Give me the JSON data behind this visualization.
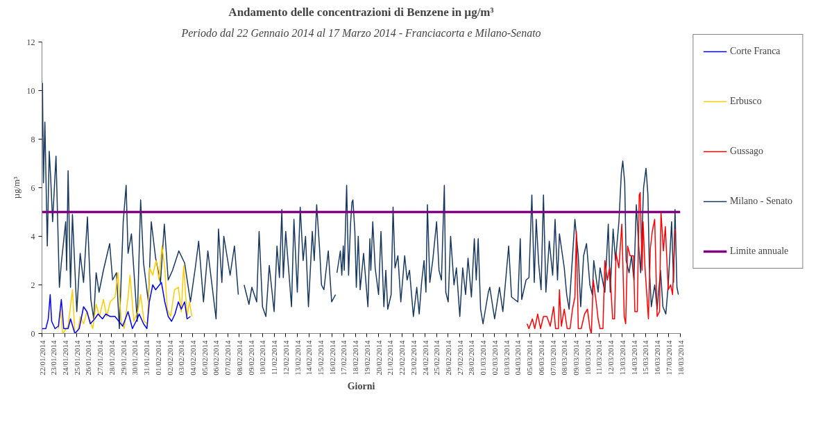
{
  "chart_data": {
    "type": "line",
    "title": "Andamento delle concentrazioni di Benzene in µg/m³",
    "subtitle": "Periodo dal 22 Gennaio 2014 al 17 Marzo 2014 - Franciacorta e Milano-Senato",
    "xlabel": "Giorni",
    "ylabel": "µg/m³",
    "legend": "right",
    "xlim": [
      "2014-01-22",
      "2014-03-18"
    ],
    "ylim": [
      0,
      12
    ],
    "yticks": [
      0,
      2,
      4,
      6,
      8,
      10,
      12
    ],
    "xticks": [
      {
        "value": "2014-01-22",
        "label": "22/01/2014"
      },
      {
        "value": "2014-01-23",
        "label": "23/01/2014"
      },
      {
        "value": "2014-01-24",
        "label": "24/01/2014"
      },
      {
        "value": "2014-01-25",
        "label": "25/01/2014"
      },
      {
        "value": "2014-01-26",
        "label": "26/01/2014"
      },
      {
        "value": "2014-01-27",
        "label": "27/01/2014"
      },
      {
        "value": "2014-01-28",
        "label": "28/01/2014"
      },
      {
        "value": "2014-01-29",
        "label": "29/01/2014"
      },
      {
        "value": "2014-01-30",
        "label": "30/01/2014"
      },
      {
        "value": "2014-01-31",
        "label": "31/01/2014"
      },
      {
        "value": "2014-02-01",
        "label": "01/02/2014"
      },
      {
        "value": "2014-02-02",
        "label": "02/02/2014"
      },
      {
        "value": "2014-02-03",
        "label": "03/02/2014"
      },
      {
        "value": "2014-02-04",
        "label": "04/02/2014"
      },
      {
        "value": "2014-02-05",
        "label": "05/02/2014"
      },
      {
        "value": "2014-02-06",
        "label": "06/02/2014"
      },
      {
        "value": "2014-02-07",
        "label": "07/02/2014"
      },
      {
        "value": "2014-02-08",
        "label": "08/02/2014"
      },
      {
        "value": "2014-02-09",
        "label": "09/02/2014"
      },
      {
        "value": "2014-02-10",
        "label": "10/02/2014"
      },
      {
        "value": "2014-02-11",
        "label": "11/02/2014"
      },
      {
        "value": "2014-02-12",
        "label": "12/02/2014"
      },
      {
        "value": "2014-02-13",
        "label": "13/02/2014"
      },
      {
        "value": "2014-02-14",
        "label": "14/02/2014"
      },
      {
        "value": "2014-02-15",
        "label": "15/02/2014"
      },
      {
        "value": "2014-02-16",
        "label": "16/02/2014"
      },
      {
        "value": "2014-02-17",
        "label": "17/02/2014"
      },
      {
        "value": "2014-02-18",
        "label": "18/02/2014"
      },
      {
        "value": "2014-02-19",
        "label": "19/02/2014"
      },
      {
        "value": "2014-02-20",
        "label": "20/02/2014"
      },
      {
        "value": "2014-02-21",
        "label": "21/02/2014"
      },
      {
        "value": "2014-02-22",
        "label": "22/02/2014"
      },
      {
        "value": "2014-02-23",
        "label": "23/02/2014"
      },
      {
        "value": "2014-02-24",
        "label": "24/02/2014"
      },
      {
        "value": "2014-02-25",
        "label": "25/02/2014"
      },
      {
        "value": "2014-02-26",
        "label": "26/02/2014"
      },
      {
        "value": "2014-02-27",
        "label": "27/02/2014"
      },
      {
        "value": "2014-02-28",
        "label": "28/02/2014"
      },
      {
        "value": "2014-03-01",
        "label": "01/03/2014"
      },
      {
        "value": "2014-03-02",
        "label": "02/03/2014"
      },
      {
        "value": "2014-03-03",
        "label": "03/03/2014"
      },
      {
        "value": "2014-03-04",
        "label": "04/03/2014"
      },
      {
        "value": "2014-03-05",
        "label": "05/03/2014"
      },
      {
        "value": "2014-03-06",
        "label": "06/03/2014"
      },
      {
        "value": "2014-03-07",
        "label": "07/03/2014"
      },
      {
        "value": "2014-03-08",
        "label": "08/03/2014"
      },
      {
        "value": "2014-03-09",
        "label": "09/03/2014"
      },
      {
        "value": "2014-03-10",
        "label": "10/03/2014"
      },
      {
        "value": "2014-03-11",
        "label": "11/03/2014"
      },
      {
        "value": "2014-03-12",
        "label": "12/03/2014"
      },
      {
        "value": "2014-03-13",
        "label": "13/03/2014"
      },
      {
        "value": "2014-03-14",
        "label": "14/03/2014"
      },
      {
        "value": "2014-03-15",
        "label": "15/03/2014"
      },
      {
        "value": "2014-03-16",
        "label": "16/03/2014"
      },
      {
        "value": "2014-03-17",
        "label": "17/03/2014"
      },
      {
        "value": "2014-03-18",
        "label": "18/03/2014"
      }
    ],
    "ref_lines": [
      {
        "axis": "y",
        "value": 5,
        "label": "Limite annuale",
        "color": "#800080"
      }
    ],
    "series": [
      {
        "name": "Corte Franca",
        "color": "#0000ff",
        "x": [
          "2014-01-22T00:00",
          "2014-01-22T02:00",
          "2014-01-22T08:00",
          "2014-01-22T13:00",
          "2014-01-22T17:00",
          "2014-01-22T20:00",
          "2014-01-23T03:00",
          "2014-01-23T10:00",
          "2014-01-23T16:00",
          "2014-01-23T21:00",
          "2014-01-24T06:00",
          "2014-01-24T11:00",
          "2014-01-24T20:00",
          "2014-01-25T05:00",
          "2014-01-25T14:00",
          "2014-01-25T21:00",
          "2014-01-26T04:00",
          "2014-01-26T13:00",
          "2014-01-26T20:00",
          "2014-01-27T05:00",
          "2014-01-27T12:00",
          "2014-01-27T21:00",
          "2014-01-28T07:00",
          "2014-01-28T23:00",
          "2014-01-29T10:00",
          "2014-01-29T19:00",
          "2014-01-30T05:00",
          "2014-01-30T09:00",
          "2014-01-30T18:00",
          "2014-01-31T01:00",
          "2014-01-31T06:00",
          "2014-01-31T13:00",
          "2014-01-31T19:00",
          "2014-02-01T07:00",
          "2014-02-01T14:00",
          "2014-02-01T21:00",
          "2014-02-02T04:00",
          "2014-02-02T11:00",
          "2014-02-02T18:00",
          "2014-02-03T00:00",
          "2014-02-03T07:00",
          "2014-02-03T12:00",
          "2014-02-03T19:00"
        ],
        "values": [
          0.2,
          0.2,
          0.2,
          0.6,
          1.6,
          0.5,
          0.2,
          0.3,
          1.4,
          0.2,
          0.2,
          0.6,
          0.0,
          0.2,
          1.1,
          0.9,
          0.4,
          0.6,
          0.8,
          0.6,
          0.8,
          0.7,
          0.7,
          0.3,
          0.9,
          0.2,
          0.6,
          0.8,
          0.4,
          0.2,
          1.3,
          2.0,
          1.8,
          2.1,
          1.3,
          0.7,
          0.5,
          0.8,
          1.3,
          1.0,
          1.3,
          0.6,
          0.7
        ]
      },
      {
        "name": "Erbusco",
        "color": "#ffcc00",
        "x": [
          "2014-01-23T10:00",
          "2014-01-23T14:00",
          "2014-01-23T19:00",
          "2014-01-24T06:00",
          "2014-01-24T15:00",
          "2014-01-24T20:00",
          "2014-01-25T02:00",
          "2014-01-25T07:00",
          "2014-01-25T14:00",
          "2014-01-25T21:00",
          "2014-01-26T09:00",
          "2014-01-26T16:00",
          "2014-01-26T23:00",
          "2014-01-27T07:00",
          "2014-01-27T14:00",
          "2014-01-27T21:00",
          "2014-01-28T07:00",
          "2014-01-28T13:00",
          "2014-01-28T20:00",
          "2014-01-29T02:00",
          "2014-01-29T10:00",
          "2014-01-29T14:00",
          "2014-01-29T22:00",
          "2014-01-30T06:00",
          "2014-01-30T12:00",
          "2014-01-30T19:00",
          "2014-01-31T02:00",
          "2014-01-31T07:00",
          "2014-01-31T13:00",
          "2014-01-31T20:00",
          "2014-02-01T02:00",
          "2014-02-01T08:00",
          "2014-02-01T14:00",
          "2014-02-01T19:00",
          "2014-02-02T02:00",
          "2014-02-02T10:00",
          "2014-02-02T18:00",
          "2014-02-03T00:00",
          "2014-02-03T05:00",
          "2014-02-03T12:00",
          "2014-02-03T17:00",
          "2014-02-03T22:00"
        ],
        "values": [
          0.2,
          1.0,
          0.0,
          0.3,
          1.8,
          0.0,
          0.1,
          0.7,
          0.4,
          0.9,
          0.2,
          1.2,
          0.7,
          1.4,
          0.7,
          1.3,
          1.5,
          2.5,
          0.5,
          0.2,
          1.5,
          2.4,
          0.5,
          0.9,
          1.6,
          0.5,
          0.4,
          2.7,
          2.4,
          3.0,
          2.2,
          3.6,
          2.7,
          1.0,
          0.7,
          1.8,
          1.9,
          0.9,
          2.8,
          0.7,
          1.3,
          0.7
        ]
      },
      {
        "name": "Gussago",
        "color": "#ff0000",
        "x": [
          "2014-03-04T19:00",
          "2014-03-04T23:00",
          "2014-03-05T06:00",
          "2014-03-05T11:00",
          "2014-03-05T17:00",
          "2014-03-05T23:00",
          "2014-03-06T05:00",
          "2014-03-06T12:00",
          "2014-03-06T19:00",
          "2014-03-07T02:00",
          "2014-03-07T06:00",
          "2014-03-07T12:00",
          "2014-03-07T14:00",
          "2014-03-07T18:00",
          "2014-03-08T00:00",
          "2014-03-08T06:00",
          "2014-03-08T12:00",
          "2014-03-08T17:00",
          "2014-03-08T22:00",
          "2014-03-09T01:00",
          "2014-03-09T05:00",
          "2014-03-09T11:00",
          "2014-03-09T18:00",
          "2014-03-10T00:00",
          "2014-03-10T05:00",
          "2014-03-10T08:00",
          "2014-03-10T12:00",
          "2014-03-10T18:00",
          "2014-03-10T22:00",
          "2014-03-11T02:00",
          "2014-03-11T08:00",
          "2014-03-11T12:00",
          "2014-03-11T17:00",
          "2014-03-11T22:00",
          "2014-03-12T04:00",
          "2014-03-12T08:00",
          "2014-03-12T11:00",
          "2014-03-12T17:00",
          "2014-03-12T23:00",
          "2014-03-13T04:00",
          "2014-03-13T07:00",
          "2014-03-13T11:00",
          "2014-03-13T16:00",
          "2014-03-13T23:00",
          "2014-03-14T02:00",
          "2014-03-14T07:00",
          "2014-03-14T11:00",
          "2014-03-14T13:00",
          "2014-03-14T17:00",
          "2014-03-14T19:00",
          "2014-03-14T23:00",
          "2014-03-15T06:00",
          "2014-03-15T10:00",
          "2014-03-15T14:00",
          "2014-03-15T19:00",
          "2014-03-16T00:00",
          "2014-03-16T05:00",
          "2014-03-16T08:00",
          "2014-03-16T13:00",
          "2014-03-16T17:00",
          "2014-03-16T23:00",
          "2014-03-17T04:00",
          "2014-03-17T08:00",
          "2014-03-17T13:00"
        ],
        "values": [
          0.4,
          0.2,
          0.6,
          0.2,
          0.8,
          0.2,
          0.7,
          0.7,
          0.3,
          1.1,
          0.2,
          0.2,
          1.8,
          0.3,
          1.0,
          0.2,
          0.2,
          1.0,
          1.5,
          4.2,
          0.2,
          0.2,
          0.8,
          1.0,
          0.2,
          0.0,
          2.2,
          1.3,
          0.6,
          0.2,
          0.2,
          3.0,
          2.2,
          2.7,
          0.6,
          0.6,
          3.3,
          2.7,
          4.5,
          0.7,
          0.4,
          3.6,
          3.2,
          3.2,
          0.9,
          0.9,
          5.7,
          5.8,
          2.6,
          4.6,
          2.7,
          0.6,
          3.5,
          4.2,
          4.7,
          0.7,
          0.9,
          5.0,
          3.4,
          4.4,
          1.8,
          2.0,
          1.6,
          4.3
        ]
      },
      {
        "name": "Milano - Senato",
        "color": "#17375e",
        "x": [
          "2014-01-22T00:00",
          "2014-01-22T01:00",
          "2014-01-22T03:00",
          "2014-01-22T06:00",
          "2014-01-22T11:00",
          "2014-01-22T15:00",
          "2014-01-22T18:00",
          "2014-01-22T22:00",
          "2014-01-23T05:00",
          "2014-01-23T12:00",
          "2014-01-23T16:00",
          "2014-01-24T01:00",
          "2014-01-24T03:00",
          "2014-01-24T06:00",
          "2014-01-24T11:00",
          "2014-01-24T15:00",
          "2014-01-25T00:00",
          "2014-01-25T07:00",
          "2014-01-25T14:00",
          "2014-01-25T22:00",
          "2014-01-26T05:00",
          "2014-01-26T11:00",
          "2014-01-26T16:00",
          "2014-01-26T22:00",
          "2014-01-27T07:00",
          "2014-01-27T20:00",
          "2014-01-28T02:00",
          "2014-01-28T10:00",
          "2014-01-28T16:00",
          "2014-01-29T00:00",
          "2014-01-29T06:00",
          "2014-01-29T10:00",
          "2014-01-29T17:00",
          "2014-01-30T05:00",
          "2014-01-30T12:00",
          "2014-01-30T18:00",
          "2014-01-31T04:00",
          "2014-01-31T10:00",
          "2014-01-31T19:00",
          "2014-02-01T05:00",
          "2014-02-01T13:00",
          "2014-02-01T21:00",
          "2014-02-02T06:00",
          "2014-02-02T19:00",
          "2014-02-03T07:00",
          "2014-02-03T19:00",
          "2014-02-04T05:00",
          "2014-02-04T12:00",
          "2014-02-04T22:00",
          "2014-02-05T07:00",
          "2014-02-06T00:00",
          "2014-02-06T05:00",
          "2014-02-06T12:00",
          "2014-02-06T16:00",
          "2014-02-07T05:00",
          "2014-02-07T14:00",
          "2014-02-07T22:00",
          "2014-02-08T04:00",
          "2014-02-08T10:00",
          "2014-02-08T20:00",
          "2014-02-09T02:00",
          "2014-02-09T12:00",
          "2014-02-09T17:00",
          "2014-02-10T00:00",
          "2014-02-10T07:00",
          "2014-02-10T14:00",
          "2014-02-11T00:00",
          "2014-02-11T06:00",
          "2014-02-11T11:00",
          "2014-02-11T16:00",
          "2014-02-11T19:00",
          "2014-02-12T00:00",
          "2014-02-12T12:00",
          "2014-02-12T17:00",
          "2014-02-13T00:00",
          "2014-02-13T06:00",
          "2014-02-13T12:00",
          "2014-02-13T17:00",
          "2014-02-13T23:00",
          "2014-02-14T07:00",
          "2014-02-14T11:00",
          "2014-02-14T16:00",
          "2014-02-14T22:00",
          "2014-02-15T02:00",
          "2014-02-15T07:00",
          "2014-02-15T16:00",
          "2014-02-15T23:00",
          "2014-02-16T07:00",
          "2014-02-16T08:00",
          "2014-02-16T10:00",
          "2014-02-16T17:00",
          "2014-02-16T20:00",
          "2014-02-16T23:00",
          "2014-02-17T01:00",
          "2014-02-17T06:00",
          "2014-02-17T10:00",
          "2014-02-17T14:00",
          "2014-02-17T17:00",
          "2014-02-17T19:00",
          "2014-02-17T23:00",
          "2014-02-18T02:00",
          "2014-02-18T06:00",
          "2014-02-18T10:00",
          "2014-02-18T17:00",
          "2014-02-19T02:00",
          "2014-02-19T06:00",
          "2014-02-19T08:00",
          "2014-02-19T12:00",
          "2014-02-19T17:00",
          "2014-02-20T00:00",
          "2014-02-20T05:00",
          "2014-02-20T11:00",
          "2014-02-20T15:00",
          "2014-02-20T19:00",
          "2014-02-21T02:00",
          "2014-02-21T06:00",
          "2014-02-21T10:00",
          "2014-02-21T16:00",
          "2014-02-21T22:00",
          "2014-02-22T06:00",
          "2014-02-22T11:00",
          "2014-02-22T16:00",
          "2014-02-23T00:00",
          "2014-02-23T07:00",
          "2014-02-23T12:00",
          "2014-02-23T17:00",
          "2014-02-23T22:00",
          "2014-02-24T02:00",
          "2014-02-24T05:00",
          "2014-02-24T10:00",
          "2014-02-24T16:00",
          "2014-02-25T00:00",
          "2014-02-25T05:00",
          "2014-02-25T10:00",
          "2014-02-25T16:00",
          "2014-02-25T19:00",
          "2014-02-26T00:00",
          "2014-02-26T05:00",
          "2014-02-26T12:00",
          "2014-02-26T17:00",
          "2014-02-27T00:00",
          "2014-02-27T06:00",
          "2014-02-27T12:00",
          "2014-02-27T17:00",
          "2014-02-28T00:00",
          "2014-02-28T06:00",
          "2014-02-28T10:00",
          "2014-02-28T14:00",
          "2014-02-28T19:00",
          "2014-03-01T00:00",
          "2014-03-01T11:00",
          "2014-03-01T14:00",
          "2014-03-02T00:00",
          "2014-03-02T10:00",
          "2014-03-02T17:00",
          "2014-03-02T22:00",
          "2014-03-03T05:00",
          "2014-03-03T11:00",
          "2014-03-04T00:00",
          "2014-03-04T05:00",
          "2014-03-04T08:00",
          "2014-03-04T17:00",
          "2014-03-04T23:00",
          "2014-03-05T05:00",
          "2014-03-05T10:00",
          "2014-03-05T14:00",
          "2014-03-05T19:00",
          "2014-03-06T00:00",
          "2014-03-06T05:00",
          "2014-03-06T10:00",
          "2014-03-06T17:00",
          "2014-03-07T00:00",
          "2014-03-07T05:00",
          "2014-03-07T10:00",
          "2014-03-07T14:00",
          "2014-03-08T00:00",
          "2014-03-08T05:00",
          "2014-03-08T10:00",
          "2014-03-08T22:00",
          "2014-03-09T05:00",
          "2014-03-09T10:00",
          "2014-03-09T16:00",
          "2014-03-09T22:00",
          "2014-03-10T05:00",
          "2014-03-10T10:00",
          "2014-03-10T13:00",
          "2014-03-10T22:00",
          "2014-03-11T02:00",
          "2014-03-11T12:00",
          "2014-03-11T19:00",
          "2014-03-11T23:00",
          "2014-03-12T05:00",
          "2014-03-12T10:00",
          "2014-03-12T17:00",
          "2014-03-12T22:00",
          "2014-03-13T01:00",
          "2014-03-13T05:00",
          "2014-03-13T08:00",
          "2014-03-13T14:00",
          "2014-03-13T19:00",
          "2014-03-14T00:00",
          "2014-03-14T05:00",
          "2014-03-14T10:00",
          "2014-03-14T14:00",
          "2014-03-14T20:00",
          "2014-03-15T01:00",
          "2014-03-15T05:00",
          "2014-03-15T08:00",
          "2014-03-15T12:00",
          "2014-03-15T19:00",
          "2014-03-16T00:00",
          "2014-03-16T07:00",
          "2014-03-16T12:00",
          "2014-03-16T18:00",
          "2014-03-16T23:00",
          "2014-03-17T06:00",
          "2014-03-17T10:00",
          "2014-03-17T13:00",
          "2014-03-17T17:00",
          "2014-03-17T20:00"
        ],
        "values": [
          8.1,
          10.3,
          6.2,
          8.7,
          3.6,
          7.5,
          6.4,
          4.6,
          7.3,
          1.9,
          2.9,
          4.6,
          2.6,
          6.7,
          1.9,
          4.9,
          0.9,
          3.3,
          2.1,
          4.8,
          1.4,
          0.6,
          2.5,
          1.7,
          2.6,
          3.7,
          2.2,
          2.5,
          0.2,
          4.6,
          6.1,
          3.3,
          4.1,
          0.5,
          5.5,
          2.9,
          1.3,
          4.6,
          3.1,
          2.1,
          4.5,
          2.2,
          2.6,
          3.4,
          2.9,
          1.3,
          2.7,
          3.8,
          1.3,
          3.4,
          0.6,
          4.3,
          2.1,
          4.0,
          2.4,
          3.6,
          1.6,
          null,
          2.0,
          1.2,
          1.9,
          1.3,
          4.2,
          1.1,
          0.7,
          2.8,
          0.9,
          3.6,
          2.3,
          5.1,
          2.3,
          4.2,
          1.1,
          4.7,
          1.7,
          5.2,
          3.0,
          4.0,
          1.1,
          4.2,
          3.0,
          5.3,
          3.5,
          2.0,
          1.8,
          3.4,
          1.3,
          1.6,
          null,
          2.5,
          3.4,
          2.4,
          3.6,
          2.6,
          6.1,
          2.4,
          4.5,
          5.4,
          5.5,
          4.2,
          1.9,
          4.0,
          1.8,
          3.3,
          1.1,
          3.9,
          2.6,
          4.6,
          2.7,
          1.6,
          4.2,
          1.1,
          2.6,
          1.0,
          1.6,
          5.2,
          2.7,
          3.2,
          1.3,
          3.2,
          2.2,
          2.6,
          0.7,
          1.9,
          0.8,
          2.1,
          3.0,
          1.7,
          5.3,
          2.1,
          3.0,
          4.6,
          2.6,
          2.2,
          6.1,
          1.7,
          1.3,
          4.0,
          2.0,
          2.7,
          0.7,
          2.7,
          1.6,
          3.1,
          1.5,
          3.9,
          2.2,
          3.9,
          1.0,
          0.4,
          1.7,
          1.9,
          0.6,
          1.9,
          0.9,
          2.0,
          3.6,
          1.5,
          1.3,
          3.9,
          1.4,
          2.2,
          2.3,
          5.7,
          2.1,
          4.7,
          2.9,
          1.8,
          5.7,
          1.7,
          3.8,
          2.4,
          4.7,
          2.2,
          4.1,
          2.7,
          1.6,
          1.0,
          4.7,
          3.2,
          1.1,
          3.2,
          3.7,
          2.0,
          1.6,
          3.0,
          1.7,
          2.7,
          1.7,
          4.5,
          1.7,
          4.3,
          3.0,
          4.6,
          6.6,
          7.1,
          6.2,
          3.0,
          2.5,
          3.2,
          2.2,
          5.3,
          3.6,
          2.5,
          6.0,
          6.8,
          5.7,
          2.7,
          1.1,
          2.0,
          1.0,
          2.6,
          1.1,
          0.8,
          2.0,
          4.6,
          2.1,
          5.1,
          1.9,
          1.6
        ]
      }
    ]
  }
}
